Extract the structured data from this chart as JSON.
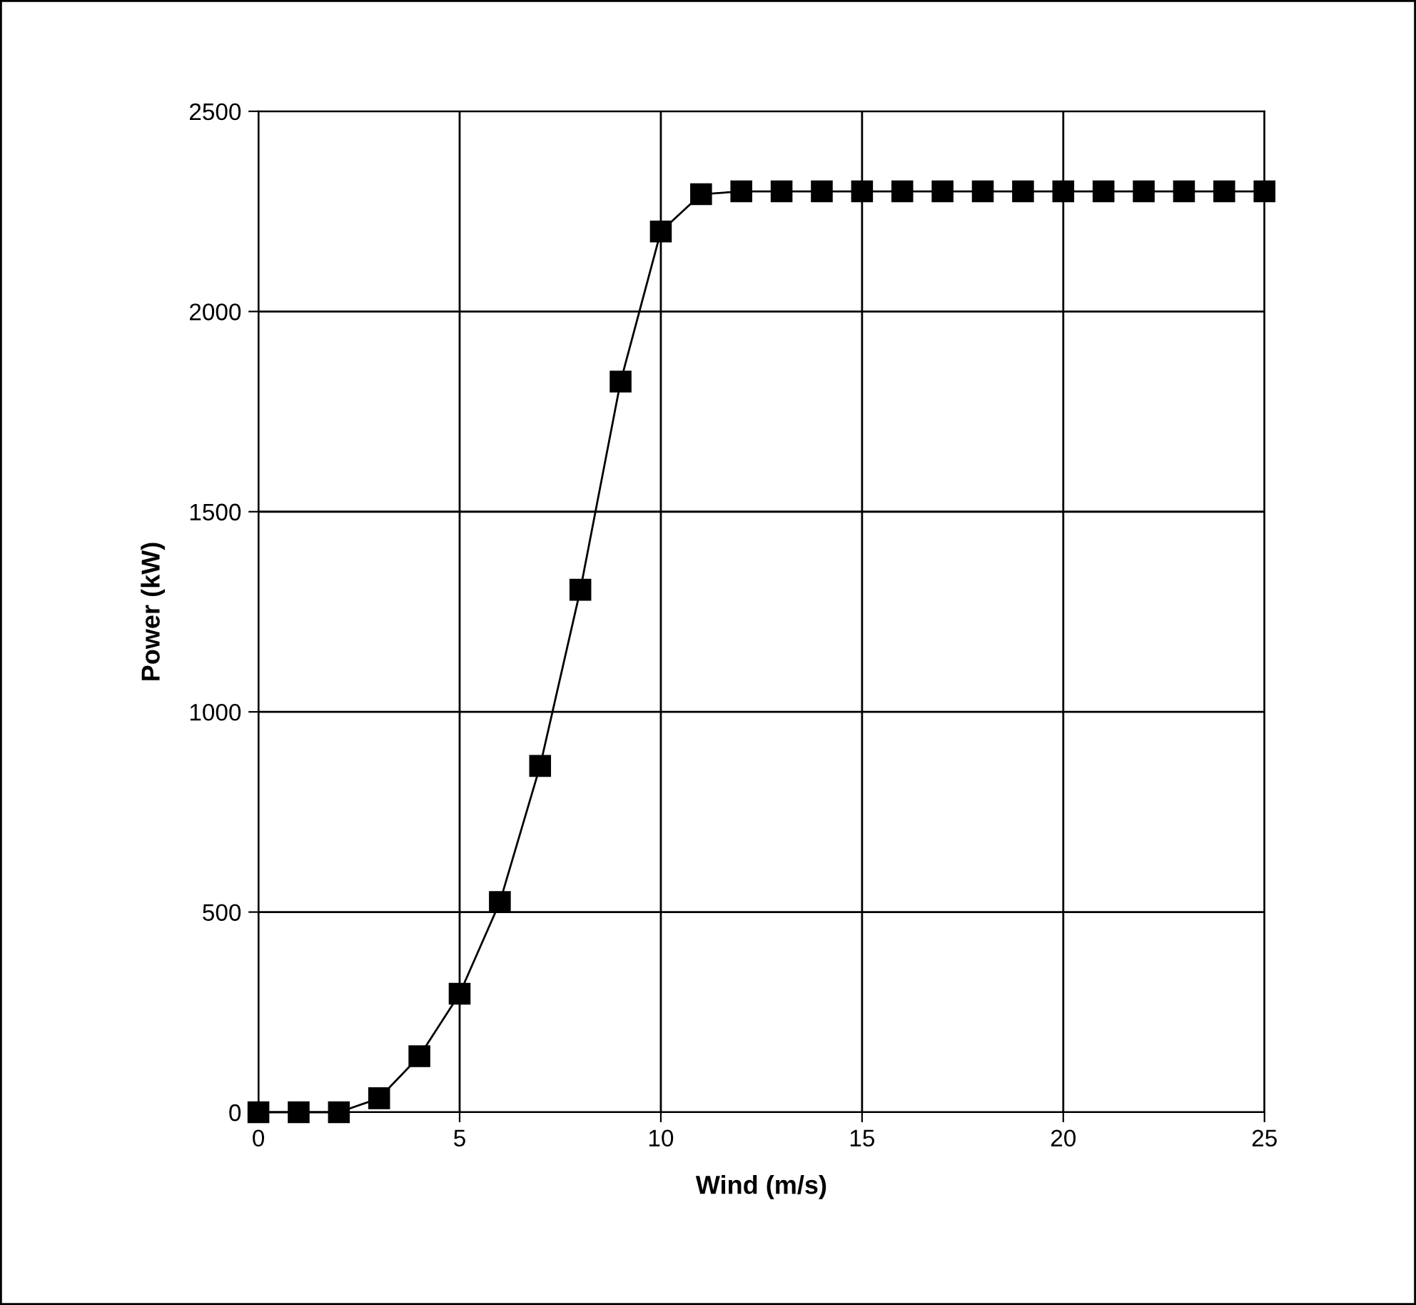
{
  "chart_data": {
    "type": "line",
    "xlabel": "Wind (m/s)",
    "ylabel": "Power (kW)",
    "x": [
      0,
      1,
      2,
      3,
      4,
      5,
      6,
      7,
      8,
      9,
      10,
      11,
      12,
      13,
      14,
      15,
      16,
      17,
      18,
      19,
      20,
      21,
      22,
      23,
      24,
      25
    ],
    "series": [
      {
        "color": "#000000",
        "values": [
          0,
          0,
          0,
          35,
          140,
          296,
          525,
          865,
          1305,
          1825,
          2200,
          2293,
          2300,
          2300,
          2300,
          2300,
          2300,
          2300,
          2300,
          2300,
          2300,
          2300,
          2300,
          2300,
          2300,
          2300
        ]
      }
    ],
    "xlim": [
      0,
      25
    ],
    "xticks": [
      0,
      5,
      10,
      15,
      20,
      25
    ],
    "ylim": [
      0,
      2500
    ],
    "yticks": [
      0,
      500,
      1000,
      1500,
      2000,
      2500
    ],
    "grid": true,
    "marker": "square",
    "line_style": "solid"
  }
}
